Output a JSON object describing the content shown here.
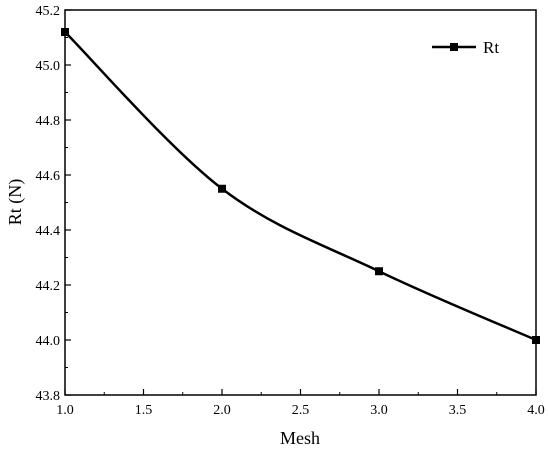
{
  "chart_data": {
    "type": "line",
    "title": "",
    "xlabel": "Mesh",
    "ylabel": "Rt (N)",
    "xlim": [
      1.0,
      4.0
    ],
    "ylim": [
      43.8,
      45.2
    ],
    "x_ticks": [
      "1.0",
      "1.5",
      "2.0",
      "2.5",
      "3.0",
      "3.5",
      "4.0"
    ],
    "y_ticks": [
      "43.8",
      "44.0",
      "44.2",
      "44.4",
      "44.6",
      "44.8",
      "45.0",
      "45.2"
    ],
    "grid": false,
    "legend_position": "top-right",
    "series": [
      {
        "name": "Rt",
        "color": "#000000",
        "marker": "square",
        "smooth": true,
        "x": [
          1.0,
          2.0,
          3.0,
          4.0
        ],
        "y": [
          45.12,
          44.55,
          44.25,
          44.0
        ]
      }
    ]
  }
}
